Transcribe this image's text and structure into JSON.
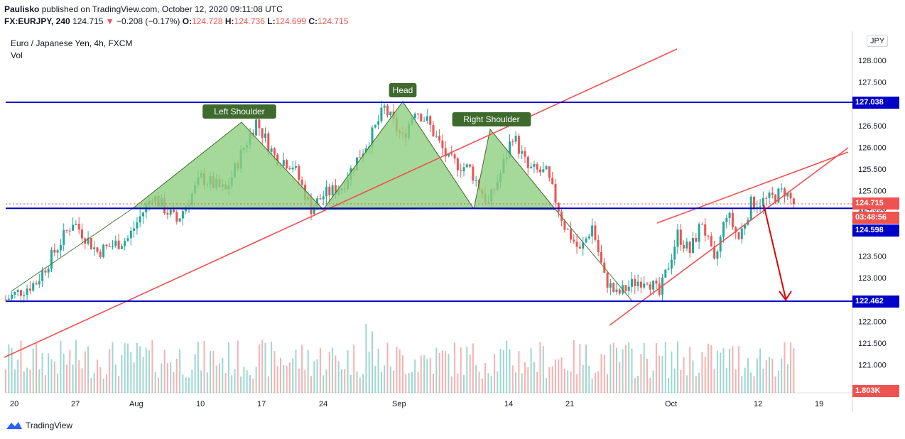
{
  "header": {
    "author": "Paulisko",
    "published": "published on TradingView.com, October 12, 2020 09:11:08 UTC",
    "symbol": "FX:EURJPY, 240",
    "last": "124.715",
    "arrow": "▼",
    "change": "−0.208 (−0.17%)",
    "o_label": "O:",
    "o_value": "124.728",
    "h_label": "H:",
    "h_value": "124.736",
    "l_label": "L:",
    "l_value": "124.699",
    "c_label": "C:",
    "c_value": "124.715"
  },
  "overlay": {
    "title": "Euro / Japanese Yen, 4h, FXCM",
    "vol_label": "Vol"
  },
  "currency_button": "JPY",
  "footer": {
    "brand": "TradingView"
  },
  "colors": {
    "up": "#26a69a",
    "down": "#ef5350",
    "level": "#0000c8",
    "trend": "#f05050",
    "pattern_fill": "#8fcf7f",
    "label_bg": "#3e6a2e"
  },
  "chart_data": {
    "type": "candlestick",
    "instrument": "EURJPY",
    "timeframe": "4h",
    "ylim": [
      120.6,
      128.4
    ],
    "y_ticks": [
      "128.000",
      "127.500",
      "127.038",
      "126.500",
      "126.000",
      "125.500",
      "125.000",
      "124.715",
      "124.598",
      "123.500",
      "123.000",
      "122.462",
      "122.000",
      "121.500",
      "121.000"
    ],
    "x_ticks": [
      "20",
      "27",
      "Aug",
      "10",
      "17",
      "24",
      "Sep",
      "14",
      "21",
      "Oct",
      "12",
      "19"
    ],
    "horizontal_levels": [
      127.038,
      124.598,
      122.462
    ],
    "price_labels": [
      {
        "text": "127.038",
        "color": "#0000c8"
      },
      {
        "text": "124.715",
        "color": "#ef5350"
      },
      {
        "text": "03:48:56",
        "color": "#ef5350"
      },
      {
        "text": "124.598",
        "color": "#0000c8"
      },
      {
        "text": "122.462",
        "color": "#0000c8"
      },
      {
        "text": "1.803K",
        "color": "#ef5350"
      }
    ],
    "pattern": "head and shoulders",
    "annotations": [
      "Left Shoulder",
      "Head",
      "Right Shoulder"
    ],
    "price_path": [
      [
        0,
        122.5
      ],
      [
        10,
        122.9
      ],
      [
        22,
        124.3
      ],
      [
        30,
        123.6
      ],
      [
        40,
        123.9
      ],
      [
        48,
        124.9
      ],
      [
        56,
        124.3
      ],
      [
        64,
        125.3
      ],
      [
        72,
        125.0
      ],
      [
        78,
        126.0
      ],
      [
        82,
        126.6
      ],
      [
        88,
        125.8
      ],
      [
        94,
        125.6
      ],
      [
        100,
        124.6
      ],
      [
        104,
        124.9
      ],
      [
        110,
        125.1
      ],
      [
        114,
        125.6
      ],
      [
        120,
        126.3
      ],
      [
        124,
        126.9
      ],
      [
        130,
        126.2
      ],
      [
        134,
        126.9
      ],
      [
        138,
        126.6
      ],
      [
        145,
        125.7
      ],
      [
        152,
        125.5
      ],
      [
        158,
        124.7
      ],
      [
        162,
        125.4
      ],
      [
        166,
        126.3
      ],
      [
        171,
        125.5
      ],
      [
        177,
        125.4
      ],
      [
        183,
        124.2
      ],
      [
        188,
        123.6
      ],
      [
        192,
        124.2
      ],
      [
        196,
        123.0
      ],
      [
        200,
        122.6
      ],
      [
        206,
        122.9
      ],
      [
        210,
        123.0
      ],
      [
        214,
        122.6
      ],
      [
        220,
        124.0
      ],
      [
        224,
        123.6
      ],
      [
        228,
        124.3
      ],
      [
        232,
        123.3
      ],
      [
        236,
        124.5
      ],
      [
        240,
        123.9
      ],
      [
        244,
        124.7
      ],
      [
        250,
        124.8
      ],
      [
        255,
        125.0
      ],
      [
        258,
        124.7
      ]
    ]
  }
}
